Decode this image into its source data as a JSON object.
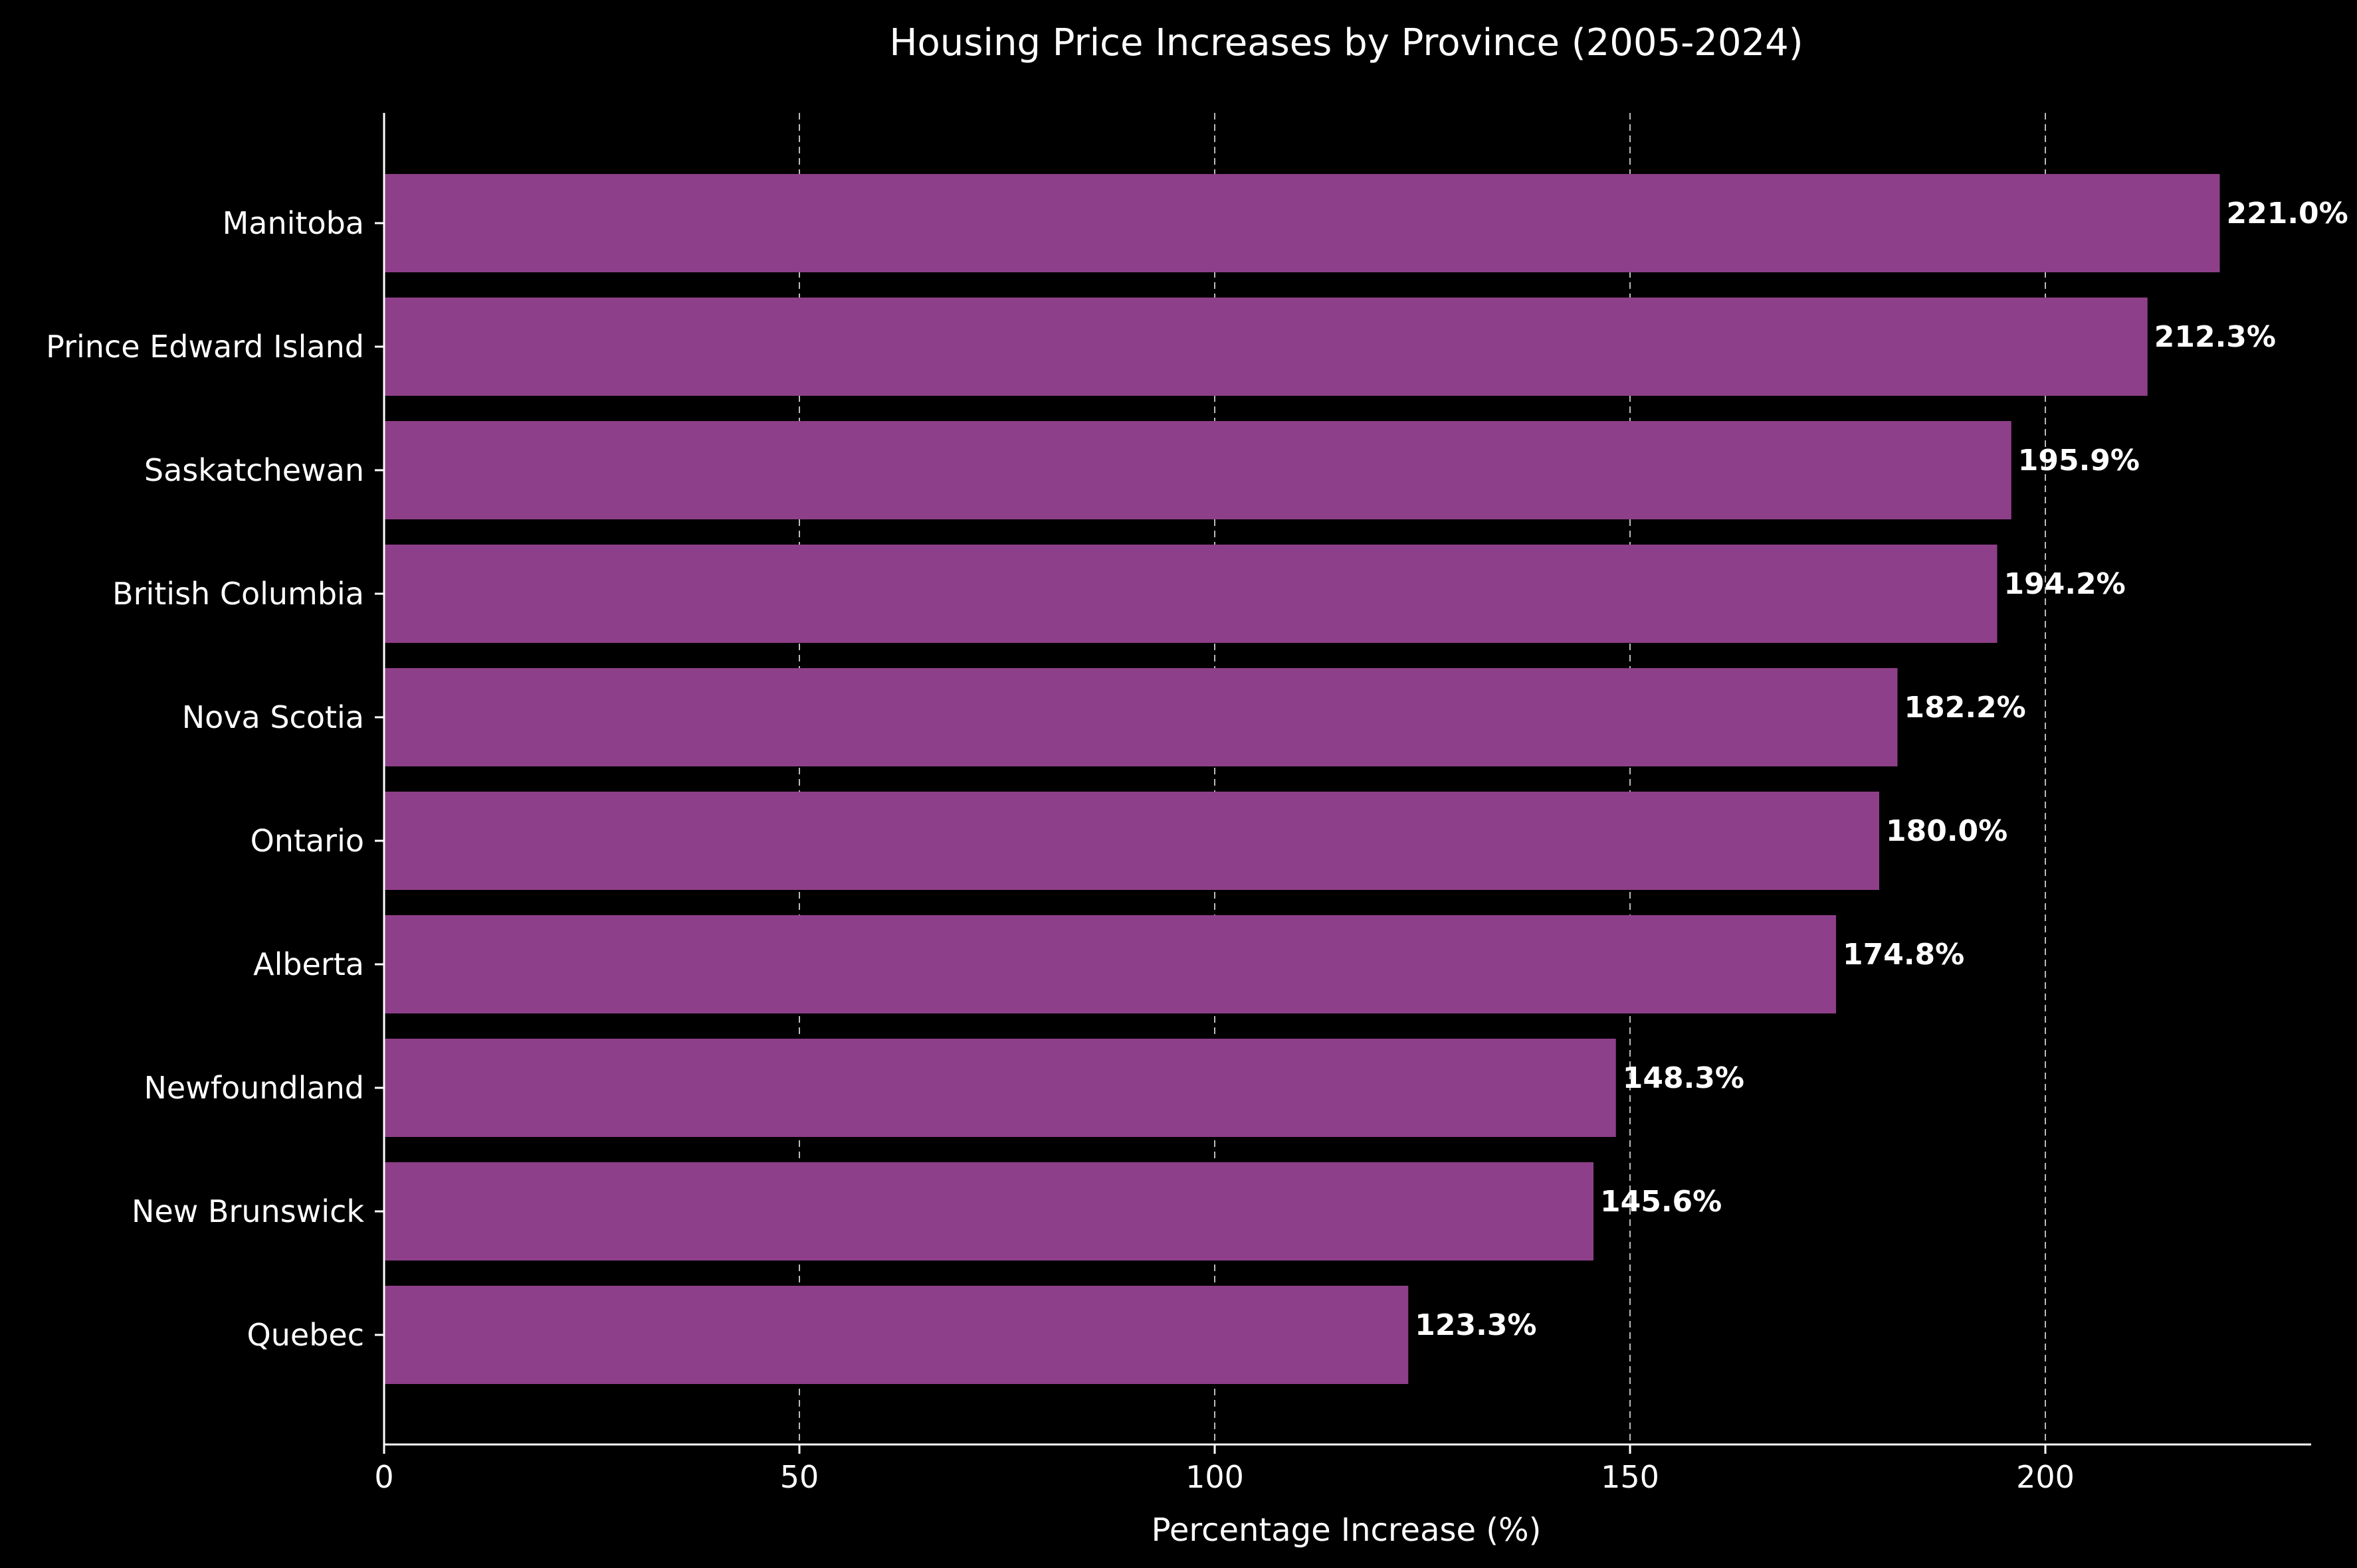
{
  "chart_data": {
    "type": "bar",
    "orientation": "horizontal",
    "title": "Housing Price Increases by Province (2005-2024)",
    "xlabel": "Percentage Increase (%)",
    "ylabel": "",
    "categories": [
      "Manitoba",
      "Prince Edward Island",
      "Saskatchewan",
      "British Columbia",
      "Nova Scotia",
      "Ontario",
      "Alberta",
      "Newfoundland",
      "New Brunswick",
      "Quebec"
    ],
    "values": [
      221.0,
      212.3,
      195.9,
      194.2,
      182.2,
      180.0,
      174.8,
      148.3,
      145.6,
      123.3
    ],
    "value_labels": [
      "221.0%",
      "212.3%",
      "195.9%",
      "194.2%",
      "182.2%",
      "180.0%",
      "174.8%",
      "148.3%",
      "145.6%",
      "123.3%"
    ],
    "xlim": [
      0,
      232
    ],
    "xticks": [
      0,
      50,
      100,
      150,
      200
    ],
    "xtick_labels": [
      "0",
      "50",
      "100",
      "150",
      "200"
    ],
    "grid": "vertical-dashed",
    "colors": {
      "background": "#000000",
      "bar": "#8e3f89",
      "axis": "#ffffff",
      "grid": "#bbbbbb",
      "text": "#ffffff"
    }
  }
}
